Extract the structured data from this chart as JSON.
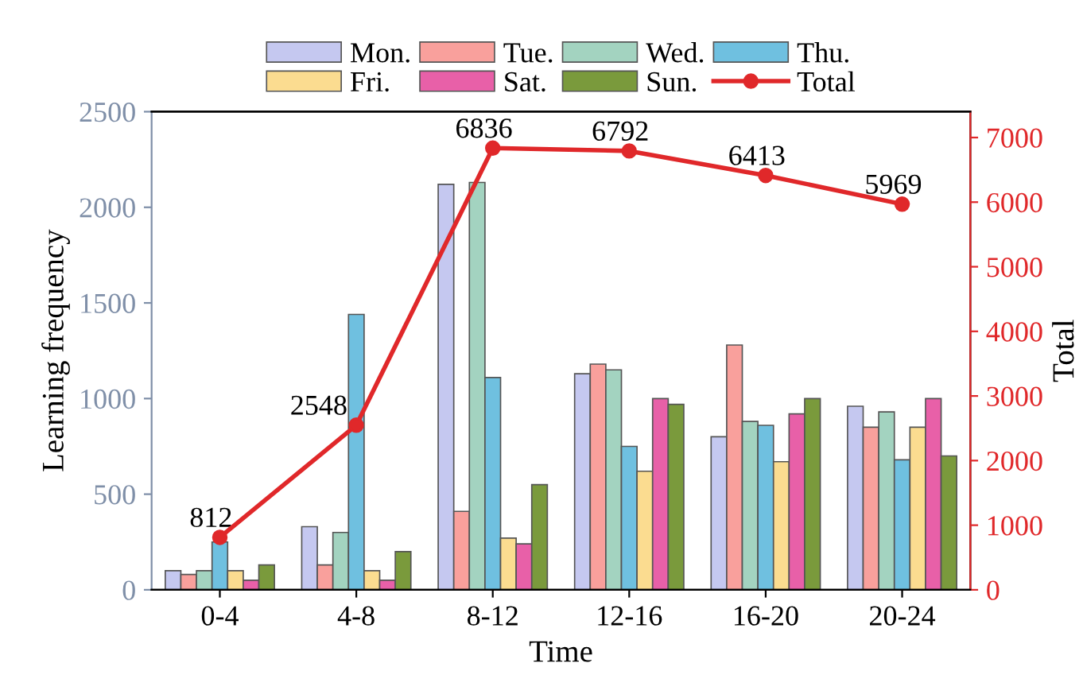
{
  "chart_data": {
    "type": "bar",
    "xlabel": "Time",
    "ylabel": "Learning frequency",
    "y2label": "Total",
    "categories": [
      "0-4",
      "4-8",
      "8-12",
      "12-16",
      "16-20",
      "20-24"
    ],
    "ylim": [
      0,
      2500
    ],
    "yticks": [
      0,
      500,
      1000,
      1500,
      2000,
      2500
    ],
    "y2lim": [
      0,
      7400
    ],
    "y2ticks": [
      0,
      1000,
      2000,
      3000,
      4000,
      5000,
      6000,
      7000
    ],
    "legend": "top",
    "grid": false,
    "series": [
      {
        "name": "Mon.",
        "color": "#c5c8f0",
        "values": [
          100,
          330,
          2120,
          1130,
          800,
          960
        ]
      },
      {
        "name": "Tue.",
        "color": "#f9a09c",
        "values": [
          80,
          130,
          410,
          1180,
          1280,
          850
        ]
      },
      {
        "name": "Wed.",
        "color": "#a3d3c0",
        "values": [
          100,
          300,
          2130,
          1150,
          880,
          930
        ]
      },
      {
        "name": "Thu.",
        "color": "#6fc0e0",
        "values": [
          250,
          1440,
          1110,
          750,
          860,
          680
        ]
      },
      {
        "name": "Fri.",
        "color": "#fbdc90",
        "values": [
          100,
          100,
          270,
          620,
          670,
          850
        ]
      },
      {
        "name": "Sat.",
        "color": "#e860a8",
        "values": [
          50,
          50,
          240,
          1000,
          920,
          1000
        ]
      },
      {
        "name": "Sun.",
        "color": "#7a9a3c",
        "values": [
          130,
          200,
          550,
          970,
          1000,
          700
        ]
      },
      {
        "name": "Total",
        "type": "line",
        "axis": "y2",
        "color": "#e0282a",
        "marker": "circle",
        "values": [
          812,
          2548,
          6836,
          6792,
          6413,
          5969
        ],
        "value_labels": [
          "812",
          "2548",
          "6836",
          "6792",
          "6413",
          "5969"
        ]
      }
    ]
  }
}
